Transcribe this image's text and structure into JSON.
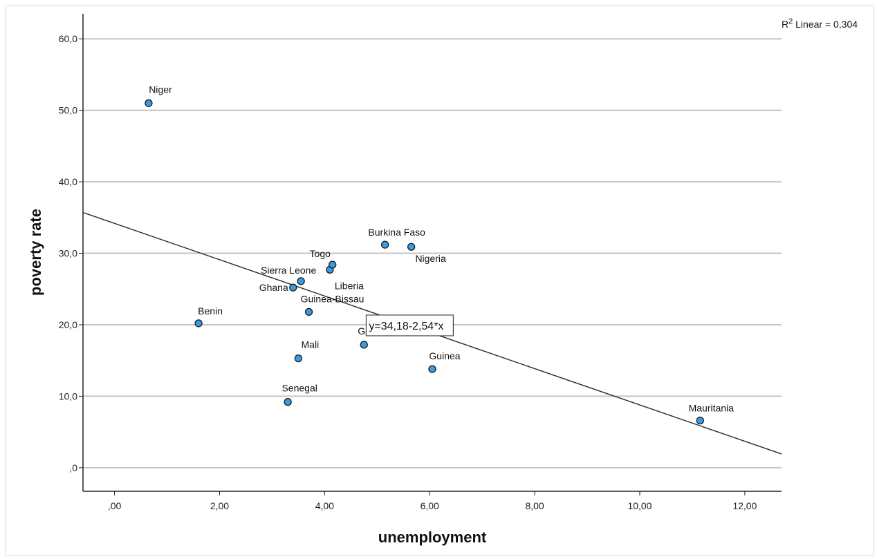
{
  "chart_data": {
    "type": "scatter",
    "xlabel": "unemployment",
    "ylabel": "poverty rate",
    "xlim": [
      -0.6,
      12.7
    ],
    "ylim": [
      -3.3,
      63.5
    ],
    "x_ticks": [
      0,
      2,
      4,
      6,
      8,
      10,
      12
    ],
    "x_tick_labels": [
      ",00",
      "2,00",
      "4,00",
      "6,00",
      "8,00",
      "10,00",
      "12,00"
    ],
    "y_ticks": [
      0,
      10,
      20,
      30,
      40,
      50,
      60
    ],
    "y_tick_labels": [
      ",0",
      "10,0",
      "20,0",
      "30,0",
      "40,0",
      "50,0",
      "60,0"
    ],
    "grid": "horizontal",
    "marker_color": "#3a9be0",
    "points": [
      {
        "label": "Niger",
        "x": 0.65,
        "y": 51.0
      },
      {
        "label": "Benin",
        "x": 1.6,
        "y": 20.2
      },
      {
        "label": "Ghana",
        "x": 3.4,
        "y": 25.2
      },
      {
        "label": "Sierra Leone",
        "x": 3.55,
        "y": 26.1
      },
      {
        "label": "Guinea-Bissau",
        "x": 3.7,
        "y": 21.8
      },
      {
        "label": "Mali",
        "x": 3.5,
        "y": 15.3
      },
      {
        "label": "Senegal",
        "x": 3.3,
        "y": 9.2
      },
      {
        "label": "Liberia",
        "x": 4.1,
        "y": 27.7
      },
      {
        "label": "Togo",
        "x": 4.15,
        "y": 28.4
      },
      {
        "label": "Gambia",
        "x": 4.75,
        "y": 17.2
      },
      {
        "label": "Burkina Faso",
        "x": 5.15,
        "y": 31.2
      },
      {
        "label": "Nigeria",
        "x": 5.65,
        "y": 30.9
      },
      {
        "label": "Guinea",
        "x": 6.05,
        "y": 13.8
      },
      {
        "label": "Mauritania",
        "x": 11.15,
        "y": 6.6
      }
    ],
    "visible_point_labels": [
      "Niger",
      "Benin",
      "Ghana",
      "Sierra Leone",
      "Guinea-Bissau",
      "Mali",
      "Senegal",
      "Liberia",
      "Togo",
      "Gamb",
      "Burkina Faso",
      "Nigeria",
      "Guinea",
      "Mauritania"
    ],
    "fit_line": {
      "type": "linear",
      "intercept": 34.18,
      "slope": -2.54,
      "equation_label": "y=34,18-2,54*x"
    },
    "r2_label": {
      "prefix": "R",
      "superscript": "2",
      "text": " Linear = 0,304"
    }
  }
}
